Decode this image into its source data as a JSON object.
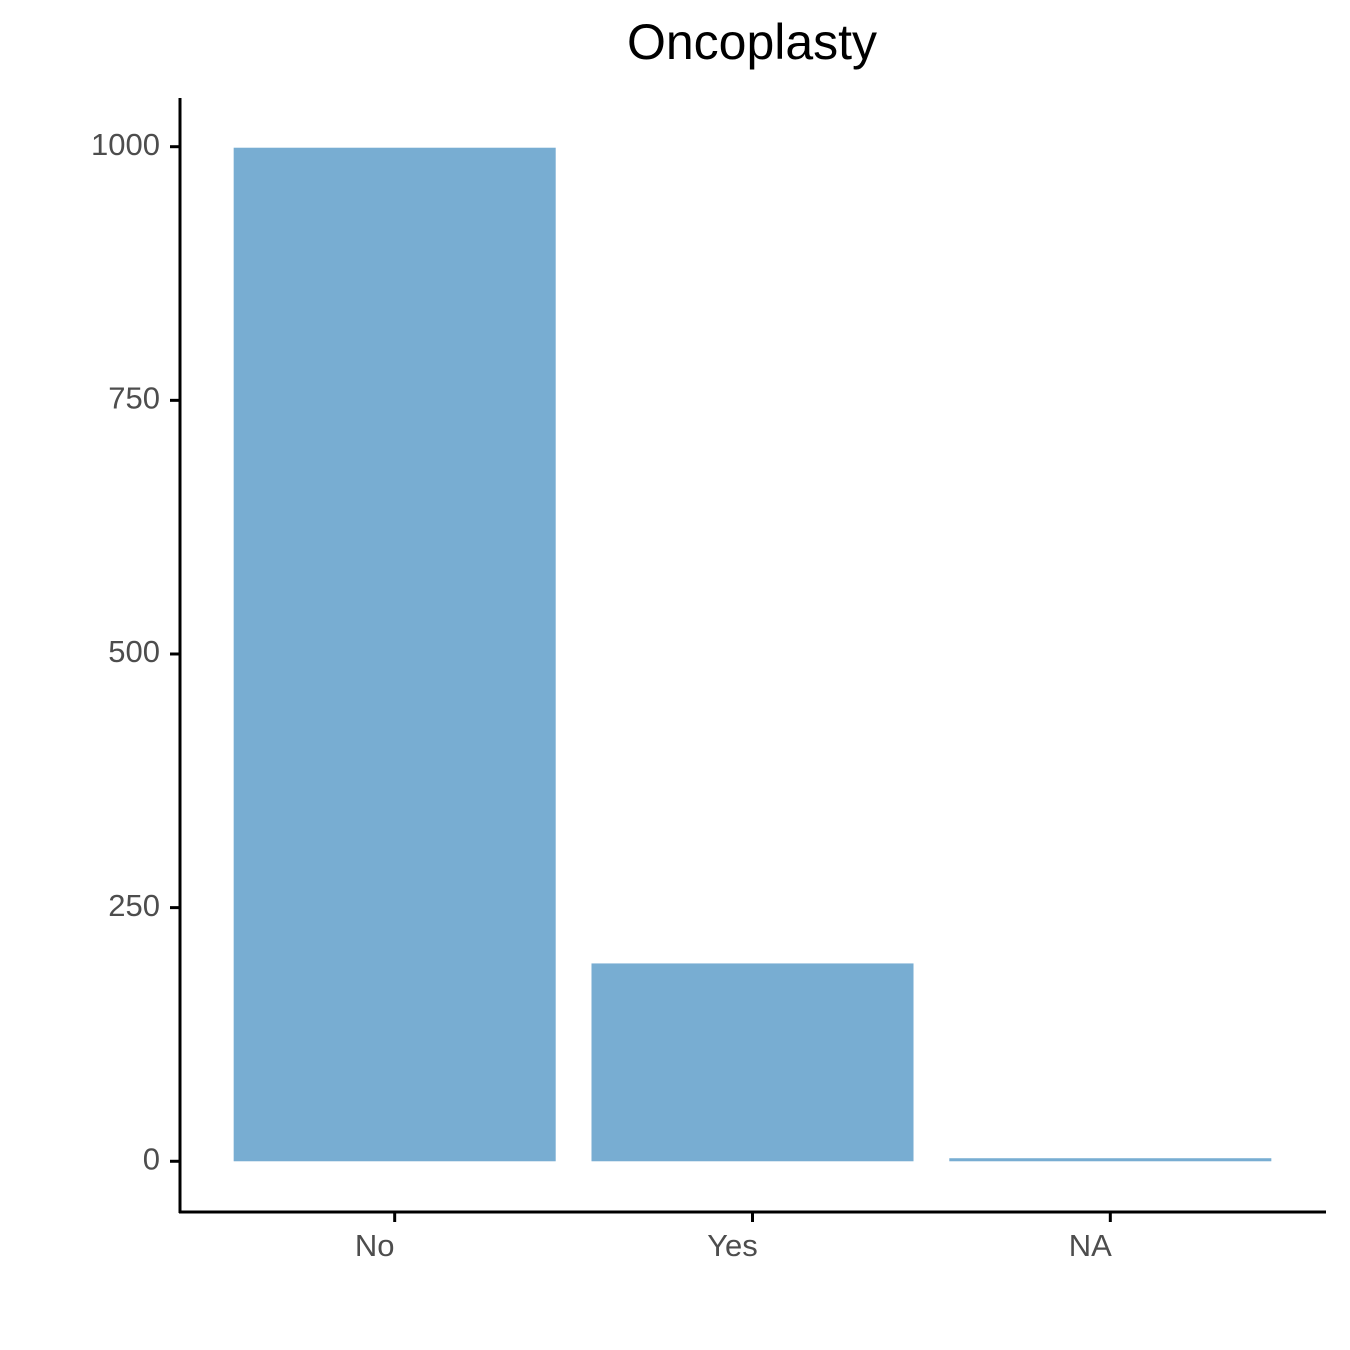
{
  "chart_data": {
    "type": "bar",
    "title": "Oncoplasty",
    "categories": [
      "No",
      "Yes",
      "NA"
    ],
    "values": [
      999,
      195,
      3
    ],
    "color": "#78adD2",
    "ylim": [
      -50,
      1048
    ],
    "yticks": [
      0,
      250,
      500,
      750,
      1000
    ],
    "grid": false
  }
}
